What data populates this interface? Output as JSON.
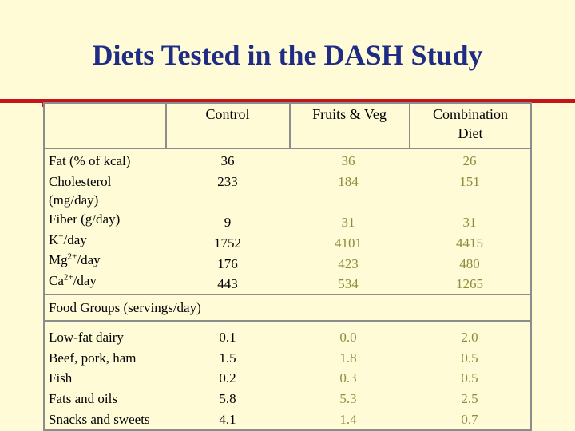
{
  "title": "Diets Tested in the DASH Study",
  "colors": {
    "title": "#1f2c86",
    "accent_rule": "#c4141c",
    "background": "#fffbd7",
    "values_fruits": "#908c3c",
    "values_combination": "#908c3c"
  },
  "table": {
    "headers": [
      "",
      "Control",
      "Fruits & Veg",
      "Combination Diet"
    ],
    "header_combination_line1": "Combination",
    "header_combination_line2": "Diet",
    "nutrient_rows": {
      "fat_label": "Fat (% of kcal)",
      "cholesterol_label_1": "Cholesterol",
      "cholesterol_label_2": "(mg/day)",
      "fiber_label": "Fiber (g/day)",
      "k_label_base": "K",
      "k_label_sup": "+",
      "k_label_rest": "/day",
      "mg_label_base": "Mg",
      "mg_label_sup": "2+",
      "mg_label_rest": "/day",
      "ca_label_base": "Ca",
      "ca_label_sup": "2+",
      "ca_label_rest": "/day",
      "control": {
        "fat": "36",
        "cholesterol": "233",
        "fiber": "9",
        "k": "1752",
        "mg": "176",
        "ca": "443"
      },
      "fruits_veg": {
        "fat": "36",
        "cholesterol": "184",
        "fiber": "31",
        "k": "4101",
        "mg": "423",
        "ca": "534"
      },
      "combination": {
        "fat": "26",
        "cholesterol": "151",
        "fiber": "31",
        "k": "4415",
        "mg": "480",
        "ca": "1265"
      }
    },
    "section_label": "Food Groups (servings/day)",
    "food_rows": {
      "labels": [
        "Low-fat dairy",
        "Beef, pork, ham",
        "Fish",
        "Fats and oils",
        "Snacks and sweets"
      ],
      "control": [
        "0.1",
        "1.5",
        "0.2",
        "5.8",
        "4.1"
      ],
      "fruits_veg": [
        "0.0",
        "1.8",
        "0.3",
        "5.3",
        "1.4"
      ],
      "combination": [
        "2.0",
        "0.5",
        "0.5",
        "2.5",
        "0.7"
      ]
    }
  }
}
